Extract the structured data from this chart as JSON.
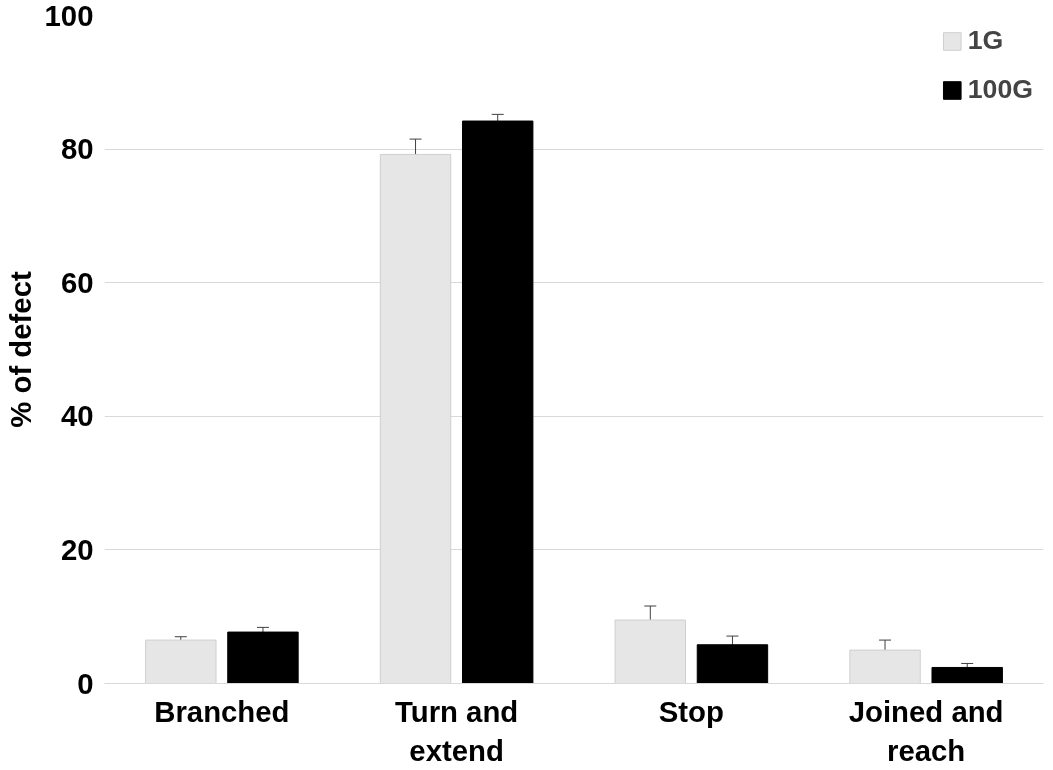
{
  "chart_data": {
    "type": "bar",
    "ylabel": "% of defect",
    "categories": [
      "Branched",
      "Turn and extend",
      "Stop",
      "Joined and reach"
    ],
    "series": [
      {
        "name": "1G",
        "color": "#e7e6e6",
        "values": [
          6.5,
          79.2,
          9.5,
          5.0
        ],
        "errors": [
          0.5,
          2.3,
          2.1,
          1.5
        ]
      },
      {
        "name": "100G",
        "color": "#000000",
        "values": [
          7.7,
          84.2,
          5.8,
          2.4
        ],
        "errors": [
          0.7,
          1.0,
          1.3,
          0.6
        ]
      }
    ],
    "ylim": [
      0,
      100
    ],
    "yticks": [
      0,
      20,
      40,
      60,
      80,
      100
    ],
    "grid": "y",
    "legend": "top right"
  }
}
